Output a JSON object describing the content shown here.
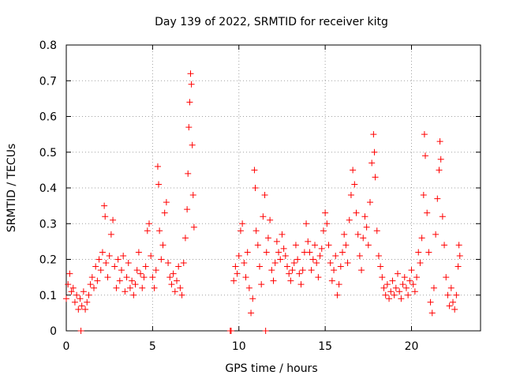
{
  "chart_data": {
    "type": "scatter",
    "title": "Day 139 of 2022, SRMTID for receiver kitg",
    "xlabel": "GPS time / hours",
    "ylabel": "SRMTID / TECUs",
    "xlim": [
      0,
      24
    ],
    "ylim": [
      0,
      0.8
    ],
    "x_ticks": [
      0,
      5,
      10,
      15,
      20
    ],
    "x_tick_labels": [
      "0",
      "5",
      "10",
      "15",
      "20"
    ],
    "y_ticks": [
      0,
      0.1,
      0.2,
      0.3,
      0.4,
      0.5,
      0.6,
      0.7,
      0.8
    ],
    "y_tick_labels": [
      "0",
      "0.1",
      "0.2",
      "0.3",
      "0.4",
      "0.5",
      "0.6",
      "0.7",
      "0.8"
    ],
    "grid": true,
    "marker": "plus",
    "series": [
      {
        "name": "SRMTID",
        "color": "#ff0000",
        "points": [
          [
            0.0,
            0.09
          ],
          [
            0.1,
            0.13
          ],
          [
            0.2,
            0.16
          ],
          [
            0.3,
            0.11
          ],
          [
            0.4,
            0.12
          ],
          [
            0.5,
            0.08
          ],
          [
            0.6,
            0.1
          ],
          [
            0.7,
            0.06
          ],
          [
            0.8,
            0.09
          ],
          [
            0.9,
            0.07
          ],
          [
            0.85,
            0.0
          ],
          [
            1.0,
            0.11
          ],
          [
            1.1,
            0.06
          ],
          [
            1.2,
            0.08
          ],
          [
            1.3,
            0.1
          ],
          [
            1.4,
            0.13
          ],
          [
            1.5,
            0.15
          ],
          [
            1.6,
            0.12
          ],
          [
            1.7,
            0.18
          ],
          [
            1.8,
            0.14
          ],
          [
            1.9,
            0.2
          ],
          [
            2.0,
            0.17
          ],
          [
            2.1,
            0.22
          ],
          [
            2.2,
            0.35
          ],
          [
            2.25,
            0.32
          ],
          [
            2.3,
            0.19
          ],
          [
            2.4,
            0.15
          ],
          [
            2.5,
            0.21
          ],
          [
            2.6,
            0.27
          ],
          [
            2.7,
            0.31
          ],
          [
            2.8,
            0.18
          ],
          [
            2.9,
            0.12
          ],
          [
            3.0,
            0.2
          ],
          [
            3.1,
            0.14
          ],
          [
            3.2,
            0.17
          ],
          [
            3.3,
            0.21
          ],
          [
            3.4,
            0.11
          ],
          [
            3.5,
            0.15
          ],
          [
            3.6,
            0.19
          ],
          [
            3.7,
            0.12
          ],
          [
            3.8,
            0.14
          ],
          [
            3.9,
            0.1
          ],
          [
            4.0,
            0.13
          ],
          [
            4.1,
            0.17
          ],
          [
            4.2,
            0.22
          ],
          [
            4.3,
            0.16
          ],
          [
            4.4,
            0.12
          ],
          [
            4.5,
            0.15
          ],
          [
            4.6,
            0.18
          ],
          [
            4.7,
            0.28
          ],
          [
            4.8,
            0.3
          ],
          [
            4.9,
            0.21
          ],
          [
            5.0,
            0.15
          ],
          [
            5.1,
            0.12
          ],
          [
            5.2,
            0.17
          ],
          [
            5.3,
            0.46
          ],
          [
            5.35,
            0.41
          ],
          [
            5.4,
            0.28
          ],
          [
            5.5,
            0.2
          ],
          [
            5.6,
            0.24
          ],
          [
            5.7,
            0.33
          ],
          [
            5.8,
            0.36
          ],
          [
            5.9,
            0.19
          ],
          [
            6.0,
            0.15
          ],
          [
            6.1,
            0.13
          ],
          [
            6.2,
            0.16
          ],
          [
            6.3,
            0.11
          ],
          [
            6.4,
            0.14
          ],
          [
            6.5,
            0.18
          ],
          [
            6.6,
            0.12
          ],
          [
            6.7,
            0.1
          ],
          [
            6.8,
            0.19
          ],
          [
            6.9,
            0.26
          ],
          [
            7.0,
            0.34
          ],
          [
            7.05,
            0.44
          ],
          [
            7.1,
            0.57
          ],
          [
            7.15,
            0.64
          ],
          [
            7.2,
            0.72
          ],
          [
            7.25,
            0.69
          ],
          [
            7.3,
            0.52
          ],
          [
            7.35,
            0.38
          ],
          [
            7.4,
            0.29
          ],
          [
            9.5,
            0.0
          ],
          [
            9.55,
            0.0
          ],
          [
            9.7,
            0.14
          ],
          [
            9.8,
            0.18
          ],
          [
            9.9,
            0.16
          ],
          [
            10.0,
            0.21
          ],
          [
            10.1,
            0.28
          ],
          [
            10.2,
            0.3
          ],
          [
            10.3,
            0.19
          ],
          [
            10.4,
            0.15
          ],
          [
            10.5,
            0.22
          ],
          [
            10.6,
            0.12
          ],
          [
            10.7,
            0.05
          ],
          [
            10.8,
            0.09
          ],
          [
            10.9,
            0.45
          ],
          [
            10.95,
            0.4
          ],
          [
            11.0,
            0.28
          ],
          [
            11.1,
            0.24
          ],
          [
            11.2,
            0.18
          ],
          [
            11.3,
            0.13
          ],
          [
            11.4,
            0.32
          ],
          [
            11.5,
            0.38
          ],
          [
            11.55,
            0.0
          ],
          [
            11.6,
            0.22
          ],
          [
            11.7,
            0.26
          ],
          [
            11.8,
            0.31
          ],
          [
            11.9,
            0.17
          ],
          [
            12.0,
            0.14
          ],
          [
            12.1,
            0.19
          ],
          [
            12.2,
            0.25
          ],
          [
            12.3,
            0.22
          ],
          [
            12.4,
            0.2
          ],
          [
            12.5,
            0.27
          ],
          [
            12.6,
            0.23
          ],
          [
            12.7,
            0.21
          ],
          [
            12.8,
            0.18
          ],
          [
            12.9,
            0.16
          ],
          [
            13.0,
            0.14
          ],
          [
            13.1,
            0.17
          ],
          [
            13.2,
            0.19
          ],
          [
            13.3,
            0.24
          ],
          [
            13.4,
            0.2
          ],
          [
            13.5,
            0.16
          ],
          [
            13.6,
            0.13
          ],
          [
            13.7,
            0.17
          ],
          [
            13.8,
            0.22
          ],
          [
            13.9,
            0.3
          ],
          [
            14.0,
            0.25
          ],
          [
            14.1,
            0.22
          ],
          [
            14.2,
            0.17
          ],
          [
            14.3,
            0.2
          ],
          [
            14.4,
            0.24
          ],
          [
            14.5,
            0.19
          ],
          [
            14.6,
            0.15
          ],
          [
            14.7,
            0.21
          ],
          [
            14.8,
            0.23
          ],
          [
            14.9,
            0.28
          ],
          [
            15.0,
            0.33
          ],
          [
            15.1,
            0.3
          ],
          [
            15.2,
            0.24
          ],
          [
            15.3,
            0.19
          ],
          [
            15.4,
            0.14
          ],
          [
            15.5,
            0.17
          ],
          [
            15.6,
            0.21
          ],
          [
            15.7,
            0.1
          ],
          [
            15.8,
            0.13
          ],
          [
            15.9,
            0.18
          ],
          [
            16.0,
            0.22
          ],
          [
            16.1,
            0.27
          ],
          [
            16.2,
            0.24
          ],
          [
            16.3,
            0.19
          ],
          [
            16.4,
            0.31
          ],
          [
            16.5,
            0.38
          ],
          [
            16.6,
            0.45
          ],
          [
            16.7,
            0.41
          ],
          [
            16.8,
            0.33
          ],
          [
            16.9,
            0.27
          ],
          [
            17.0,
            0.21
          ],
          [
            17.1,
            0.17
          ],
          [
            17.2,
            0.26
          ],
          [
            17.3,
            0.32
          ],
          [
            17.4,
            0.29
          ],
          [
            17.5,
            0.24
          ],
          [
            17.6,
            0.36
          ],
          [
            17.7,
            0.47
          ],
          [
            17.8,
            0.55
          ],
          [
            17.85,
            0.5
          ],
          [
            17.9,
            0.43
          ],
          [
            18.0,
            0.28
          ],
          [
            18.1,
            0.21
          ],
          [
            18.2,
            0.18
          ],
          [
            18.3,
            0.15
          ],
          [
            18.4,
            0.12
          ],
          [
            18.5,
            0.1
          ],
          [
            18.6,
            0.13
          ],
          [
            18.7,
            0.09
          ],
          [
            18.8,
            0.11
          ],
          [
            18.9,
            0.14
          ],
          [
            19.0,
            0.1
          ],
          [
            19.1,
            0.12
          ],
          [
            19.2,
            0.16
          ],
          [
            19.3,
            0.11
          ],
          [
            19.4,
            0.09
          ],
          [
            19.5,
            0.13
          ],
          [
            19.6,
            0.15
          ],
          [
            19.7,
            0.12
          ],
          [
            19.8,
            0.1
          ],
          [
            19.9,
            0.14
          ],
          [
            20.0,
            0.17
          ],
          [
            20.1,
            0.13
          ],
          [
            20.2,
            0.11
          ],
          [
            20.3,
            0.15
          ],
          [
            20.4,
            0.22
          ],
          [
            20.5,
            0.19
          ],
          [
            20.6,
            0.26
          ],
          [
            20.7,
            0.38
          ],
          [
            20.75,
            0.55
          ],
          [
            20.8,
            0.49
          ],
          [
            20.9,
            0.33
          ],
          [
            21.0,
            0.22
          ],
          [
            21.1,
            0.08
          ],
          [
            21.2,
            0.05
          ],
          [
            21.3,
            0.12
          ],
          [
            21.4,
            0.27
          ],
          [
            21.5,
            0.37
          ],
          [
            21.6,
            0.45
          ],
          [
            21.65,
            0.53
          ],
          [
            21.7,
            0.48
          ],
          [
            21.8,
            0.32
          ],
          [
            21.9,
            0.24
          ],
          [
            22.0,
            0.15
          ],
          [
            22.1,
            0.1
          ],
          [
            22.2,
            0.07
          ],
          [
            22.3,
            0.12
          ],
          [
            22.4,
            0.08
          ],
          [
            22.5,
            0.06
          ],
          [
            22.6,
            0.1
          ],
          [
            22.7,
            0.18
          ],
          [
            22.75,
            0.24
          ],
          [
            22.8,
            0.21
          ]
        ]
      }
    ]
  }
}
